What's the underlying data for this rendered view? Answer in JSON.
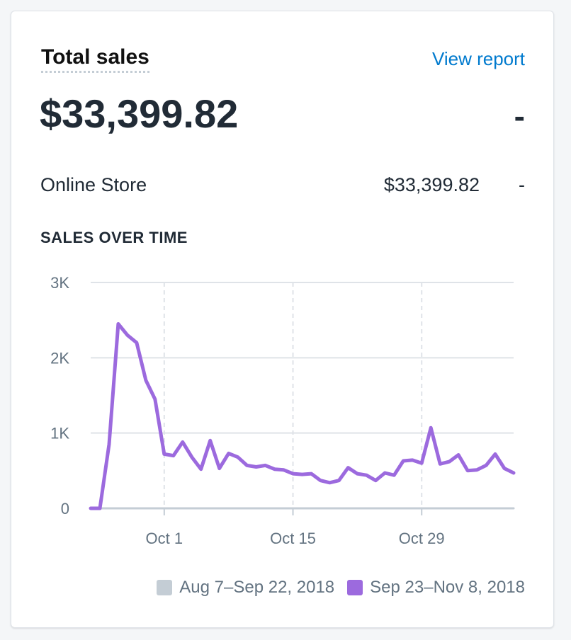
{
  "card": {
    "title": "Total sales",
    "view_report": "View report",
    "total_value": "$33,399.82",
    "total_change": "-",
    "channel": {
      "name": "Online Store",
      "value": "$33,399.82",
      "change": "-"
    },
    "section_heading": "SALES OVER TIME"
  },
  "colors": {
    "current": "#9c6ade",
    "previous": "#c4cdd5",
    "link": "#007ace",
    "grid": "#dfe3e8"
  },
  "chart_data": {
    "type": "line",
    "ylim": [
      0,
      3000
    ],
    "y_ticks": [
      0,
      1000,
      2000,
      3000
    ],
    "y_tick_labels": [
      "0",
      "1K",
      "2K",
      "3K"
    ],
    "x_tick_labels": [
      "Oct 1",
      "Oct 15",
      "Oct 29"
    ],
    "x_tick_dates": [
      "2018-10-01",
      "2018-10-15",
      "2018-10-29"
    ],
    "x_range": [
      "2018-09-23",
      "2018-11-08"
    ],
    "grid": true,
    "legend_placement": "bottom-right",
    "legend": [
      "Aug 7–Sep 22, 2018",
      "Sep 23–Nov 8, 2018"
    ],
    "series": [
      {
        "name": "Aug 7–Sep 22, 2018",
        "color": "#c4cdd5",
        "values": [
          0,
          0,
          0,
          0,
          0,
          0,
          0,
          0,
          0,
          0,
          0,
          0,
          0,
          0,
          0,
          0,
          0,
          0,
          0,
          0,
          0,
          0,
          0,
          0,
          0,
          0,
          0,
          0,
          0,
          0,
          0,
          0,
          0,
          0,
          0,
          0,
          0,
          0,
          0,
          0,
          0,
          0,
          0,
          0,
          0,
          0,
          0
        ]
      },
      {
        "name": "Sep 23–Nov 8, 2018",
        "color": "#9c6ade",
        "values": [
          0,
          0,
          850,
          2450,
          2300,
          2200,
          1700,
          1450,
          720,
          700,
          880,
          680,
          520,
          900,
          530,
          730,
          680,
          570,
          550,
          570,
          520,
          510,
          460,
          450,
          460,
          370,
          340,
          370,
          540,
          460,
          440,
          370,
          470,
          440,
          630,
          640,
          600,
          1070,
          590,
          620,
          710,
          500,
          510,
          570,
          720,
          530,
          470
        ]
      }
    ]
  }
}
